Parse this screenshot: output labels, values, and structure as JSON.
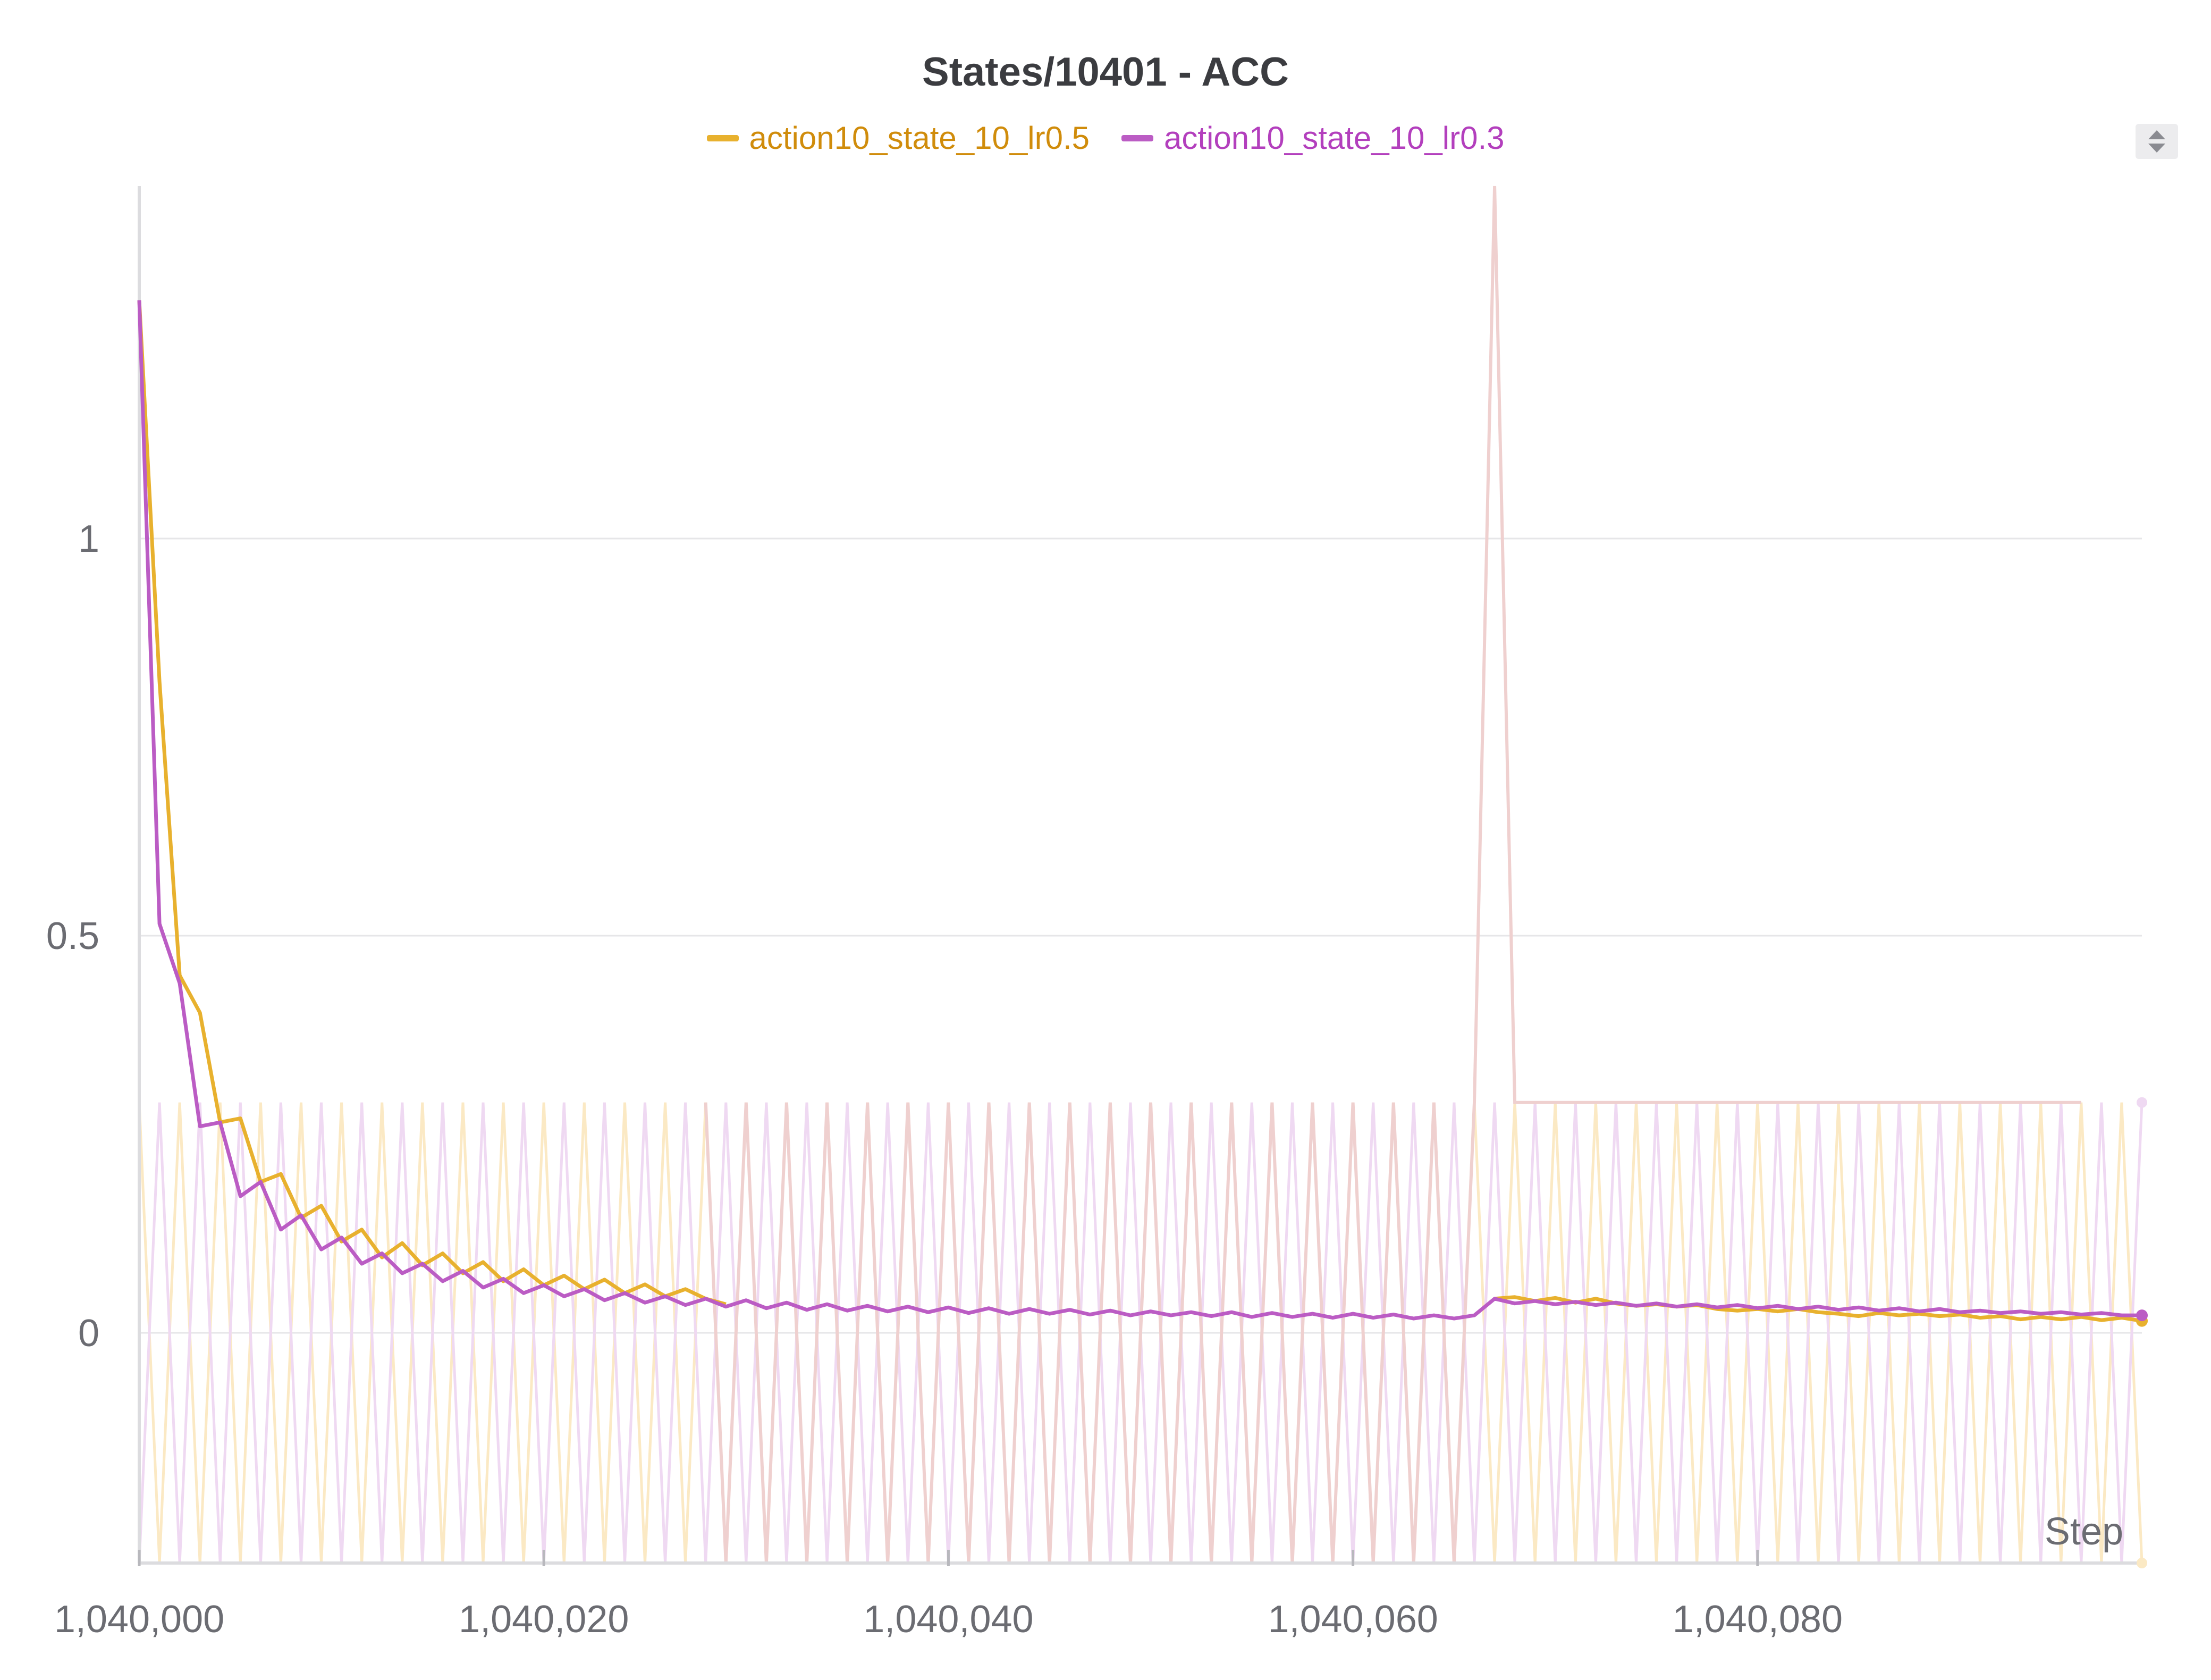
{
  "chart_data": {
    "type": "line",
    "title": "States/10401 - ACC",
    "xlabel": "Step",
    "ylabel": "",
    "xlim": [
      1040000,
      1040099
    ],
    "ylim": [
      -0.29,
      1.45
    ],
    "x_ticks": [
      1040000,
      1040020,
      1040040,
      1040060,
      1040080
    ],
    "x_tick_labels": [
      "1,040,000",
      "1,040,020",
      "1,040,040",
      "1,040,060",
      "1,040,080"
    ],
    "y_ticks": [
      0,
      0.5,
      1
    ],
    "y_tick_labels": [
      "0",
      "0.5",
      "1"
    ],
    "grid": "horizontal",
    "legend": "top-center",
    "series": [
      {
        "name": "action10_state_10_lr0.5",
        "color": "#e8b12e",
        "label_color": "#d08c0b",
        "raw_color": "#fbe9c4",
        "points": [
          [
            1040000,
            1.3
          ],
          [
            1040001,
            0.82
          ],
          [
            1040002,
            0.45
          ],
          [
            1040003,
            0.403
          ],
          [
            1040004,
            0.265
          ],
          [
            1040005,
            0.27
          ],
          [
            1040006,
            0.19
          ],
          [
            1040007,
            0.2
          ],
          [
            1040008,
            0.145
          ],
          [
            1040009,
            0.16
          ],
          [
            1040010,
            0.115
          ],
          [
            1040011,
            0.13
          ],
          [
            1040012,
            0.095
          ],
          [
            1040013,
            0.113
          ],
          [
            1040014,
            0.085
          ],
          [
            1040015,
            0.1
          ],
          [
            1040016,
            0.075
          ],
          [
            1040017,
            0.089
          ],
          [
            1040018,
            0.065
          ],
          [
            1040019,
            0.08
          ],
          [
            1040020,
            0.06
          ],
          [
            1040021,
            0.072
          ],
          [
            1040022,
            0.055
          ],
          [
            1040023,
            0.067
          ],
          [
            1040024,
            0.05
          ],
          [
            1040025,
            0.061
          ],
          [
            1040026,
            0.046
          ],
          [
            1040027,
            0.055
          ],
          [
            1040028,
            0.043
          ],
          [
            1040029,
            0.036
          ],
          [
            1040067,
            0.043
          ],
          [
            1040068,
            0.045
          ],
          [
            1040069,
            0.04
          ],
          [
            1040070,
            0.044
          ],
          [
            1040071,
            0.038
          ],
          [
            1040072,
            0.043
          ],
          [
            1040073,
            0.037
          ],
          [
            1040074,
            0.034
          ],
          [
            1040075,
            0.036
          ],
          [
            1040076,
            0.033
          ],
          [
            1040077,
            0.035
          ],
          [
            1040078,
            0.03
          ],
          [
            1040079,
            0.028
          ],
          [
            1040080,
            0.03
          ],
          [
            1040081,
            0.027
          ],
          [
            1040082,
            0.03
          ],
          [
            1040083,
            0.026
          ],
          [
            1040084,
            0.024
          ],
          [
            1040085,
            0.021
          ],
          [
            1040086,
            0.025
          ],
          [
            1040087,
            0.022
          ],
          [
            1040088,
            0.024
          ],
          [
            1040089,
            0.021
          ],
          [
            1040090,
            0.023
          ],
          [
            1040091,
            0.019
          ],
          [
            1040092,
            0.021
          ],
          [
            1040093,
            0.017
          ],
          [
            1040094,
            0.02
          ],
          [
            1040095,
            0.017
          ],
          [
            1040096,
            0.02
          ],
          [
            1040097,
            0.016
          ],
          [
            1040098,
            0.019
          ],
          [
            1040099,
            0.015
          ]
        ]
      },
      {
        "name": "action10_state_10_lr0.3",
        "color": "#bb5cc4",
        "label_color": "#b33fbd",
        "raw_color": "#efd9f2",
        "points": [
          [
            1040000,
            1.3
          ],
          [
            1040001,
            0.515
          ],
          [
            1040002,
            0.44
          ],
          [
            1040003,
            0.26
          ],
          [
            1040004,
            0.265
          ],
          [
            1040005,
            0.172
          ],
          [
            1040006,
            0.19
          ],
          [
            1040007,
            0.13
          ],
          [
            1040008,
            0.148
          ],
          [
            1040009,
            0.105
          ],
          [
            1040010,
            0.12
          ],
          [
            1040011,
            0.087
          ],
          [
            1040012,
            0.1
          ],
          [
            1040013,
            0.075
          ],
          [
            1040014,
            0.087
          ],
          [
            1040015,
            0.065
          ],
          [
            1040016,
            0.078
          ],
          [
            1040017,
            0.057
          ],
          [
            1040018,
            0.068
          ],
          [
            1040019,
            0.05
          ],
          [
            1040020,
            0.06
          ],
          [
            1040021,
            0.046
          ],
          [
            1040022,
            0.055
          ],
          [
            1040023,
            0.041
          ],
          [
            1040024,
            0.05
          ],
          [
            1040025,
            0.038
          ],
          [
            1040026,
            0.046
          ],
          [
            1040027,
            0.035
          ],
          [
            1040028,
            0.043
          ],
          [
            1040029,
            0.033
          ],
          [
            1040030,
            0.041
          ],
          [
            1040031,
            0.031
          ],
          [
            1040032,
            0.038
          ],
          [
            1040033,
            0.029
          ],
          [
            1040034,
            0.036
          ],
          [
            1040035,
            0.028
          ],
          [
            1040036,
            0.034
          ],
          [
            1040037,
            0.027
          ],
          [
            1040038,
            0.033
          ],
          [
            1040039,
            0.026
          ],
          [
            1040040,
            0.032
          ],
          [
            1040041,
            0.025
          ],
          [
            1040042,
            0.031
          ],
          [
            1040043,
            0.024
          ],
          [
            1040044,
            0.03
          ],
          [
            1040045,
            0.024
          ],
          [
            1040046,
            0.029
          ],
          [
            1040047,
            0.023
          ],
          [
            1040048,
            0.028
          ],
          [
            1040049,
            0.022
          ],
          [
            1040050,
            0.027
          ],
          [
            1040051,
            0.022
          ],
          [
            1040052,
            0.026
          ],
          [
            1040053,
            0.021
          ],
          [
            1040054,
            0.026
          ],
          [
            1040055,
            0.02
          ],
          [
            1040056,
            0.025
          ],
          [
            1040057,
            0.02
          ],
          [
            1040058,
            0.024
          ],
          [
            1040059,
            0.019
          ],
          [
            1040060,
            0.024
          ],
          [
            1040061,
            0.019
          ],
          [
            1040062,
            0.023
          ],
          [
            1040063,
            0.018
          ],
          [
            1040064,
            0.022
          ],
          [
            1040065,
            0.018
          ],
          [
            1040066,
            0.022
          ],
          [
            1040067,
            0.043
          ],
          [
            1040068,
            0.037
          ],
          [
            1040069,
            0.04
          ],
          [
            1040070,
            0.036
          ],
          [
            1040071,
            0.039
          ],
          [
            1040072,
            0.035
          ],
          [
            1040073,
            0.038
          ],
          [
            1040074,
            0.034
          ],
          [
            1040075,
            0.037
          ],
          [
            1040076,
            0.033
          ],
          [
            1040077,
            0.036
          ],
          [
            1040078,
            0.032
          ],
          [
            1040079,
            0.035
          ],
          [
            1040080,
            0.031
          ],
          [
            1040081,
            0.034
          ],
          [
            1040082,
            0.03
          ],
          [
            1040083,
            0.033
          ],
          [
            1040084,
            0.029
          ],
          [
            1040085,
            0.032
          ],
          [
            1040086,
            0.028
          ],
          [
            1040087,
            0.031
          ],
          [
            1040088,
            0.027
          ],
          [
            1040089,
            0.03
          ],
          [
            1040090,
            0.026
          ],
          [
            1040091,
            0.028
          ],
          [
            1040092,
            0.025
          ],
          [
            1040093,
            0.027
          ],
          [
            1040094,
            0.024
          ],
          [
            1040095,
            0.026
          ],
          [
            1040096,
            0.023
          ],
          [
            1040097,
            0.025
          ],
          [
            1040098,
            0.022
          ],
          [
            1040099,
            0.022
          ]
        ]
      }
    ]
  }
}
